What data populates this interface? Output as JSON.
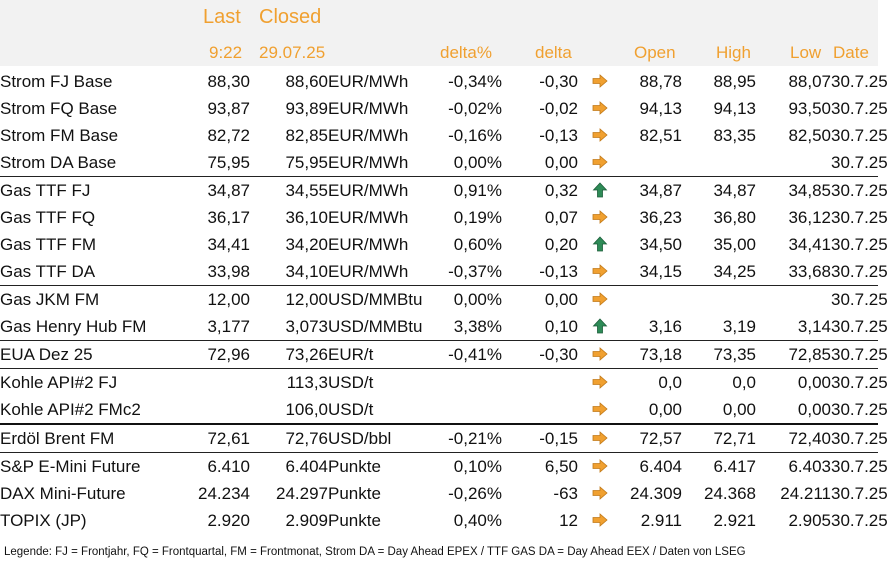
{
  "header": {
    "last_label": "Last",
    "closed_label": "Closed",
    "last_time": "9:22",
    "closed_date": "29.07.25",
    "delta_pct_label": "delta%",
    "delta_label": "delta",
    "open_label": "Open",
    "high_label": "High",
    "low_label": "Low",
    "date_label": "Date"
  },
  "colors": {
    "header_text": "#f0a030",
    "arrow_flat": "#f0a030",
    "arrow_up": "#2e8b57",
    "header_bg": "#f2f2f2"
  },
  "rows": [
    {
      "name": "Strom FJ Base",
      "last": "88,30",
      "closed": "88,60",
      "unit": "EUR/MWh",
      "delta_pct": "-0,34%",
      "delta": "-0,30",
      "trend": "flat",
      "open": "88,78",
      "high": "88,95",
      "low": "88,07",
      "date": "30.7.25"
    },
    {
      "name": "Strom FQ Base",
      "last": "93,87",
      "closed": "93,89",
      "unit": "EUR/MWh",
      "delta_pct": "-0,02%",
      "delta": "-0,02",
      "trend": "flat",
      "open": "94,13",
      "high": "94,13",
      "low": "93,50",
      "date": "30.7.25"
    },
    {
      "name": "Strom FM Base",
      "last": "82,72",
      "closed": "82,85",
      "unit": "EUR/MWh",
      "delta_pct": "-0,16%",
      "delta": "-0,13",
      "trend": "flat",
      "open": "82,51",
      "high": "83,35",
      "low": "82,50",
      "date": "30.7.25"
    },
    {
      "name": "Strom DA Base",
      "last": "75,95",
      "closed": "75,95",
      "unit": "EUR/MWh",
      "delta_pct": "0,00%",
      "delta": "0,00",
      "trend": "flat",
      "open": "",
      "high": "",
      "low": "",
      "date": "30.7.25"
    },
    {
      "name": "Gas TTF FJ",
      "last": "34,87",
      "closed": "34,55",
      "unit": "EUR/MWh",
      "delta_pct": "0,91%",
      "delta": "0,32",
      "trend": "up",
      "open": "34,87",
      "high": "34,87",
      "low": "34,85",
      "date": "30.7.25",
      "group_start": true
    },
    {
      "name": "Gas TTF FQ",
      "last": "36,17",
      "closed": "36,10",
      "unit": "EUR/MWh",
      "delta_pct": "0,19%",
      "delta": "0,07",
      "trend": "flat",
      "open": "36,23",
      "high": "36,80",
      "low": "36,12",
      "date": "30.7.25"
    },
    {
      "name": "Gas TTF FM",
      "last": "34,41",
      "closed": "34,20",
      "unit": "EUR/MWh",
      "delta_pct": "0,60%",
      "delta": "0,20",
      "trend": "up",
      "open": "34,50",
      "high": "35,00",
      "low": "34,41",
      "date": "30.7.25"
    },
    {
      "name": "Gas TTF DA",
      "last": "33,98",
      "closed": "34,10",
      "unit": "EUR/MWh",
      "delta_pct": "-0,37%",
      "delta": "-0,13",
      "trend": "flat",
      "open": "34,15",
      "high": "34,25",
      "low": "33,68",
      "date": "30.7.25"
    },
    {
      "name": "Gas JKM FM",
      "last": "12,00",
      "closed": "12,00",
      "unit": "USD/MMBtu",
      "delta_pct": "0,00%",
      "delta": "0,00",
      "trend": "flat",
      "open": "",
      "high": "",
      "low": "",
      "date": "30.7.25",
      "group_start": true
    },
    {
      "name": "Gas Henry Hub FM",
      "last": "3,177",
      "closed": "3,073",
      "unit": "USD/MMBtu",
      "delta_pct": "3,38%",
      "delta": "0,10",
      "trend": "up",
      "open": "3,16",
      "high": "3,19",
      "low": "3,14",
      "date": "30.7.25"
    },
    {
      "name": "EUA Dez 25",
      "last": "72,96",
      "closed": "73,26",
      "unit": "EUR/t",
      "delta_pct": "-0,41%",
      "delta": "-0,30",
      "trend": "flat",
      "open": "73,18",
      "high": "73,35",
      "low": "72,85",
      "date": "30.7.25",
      "group_start": true
    },
    {
      "name": "Kohle API#2 FJ",
      "last": "",
      "closed": "113,3",
      "unit": "USD/t",
      "delta_pct": "",
      "delta": "",
      "trend": "flat",
      "open": "0,0",
      "high": "0,0",
      "low": "0,00",
      "date": "30.7.25",
      "group_start": true
    },
    {
      "name": "Kohle API#2 FMc2",
      "last": "",
      "closed": "106,0",
      "unit": "USD/t",
      "delta_pct": "",
      "delta": "",
      "trend": "flat",
      "open": "0,00",
      "high": "0,00",
      "low": "0,00",
      "date": "30.7.25"
    },
    {
      "name": "Erdöl Brent FM",
      "last": "72,61",
      "closed": "72,76",
      "unit": "USD/bbl",
      "delta_pct": "-0,21%",
      "delta": "-0,15",
      "trend": "flat",
      "open": "72,57",
      "high": "72,71",
      "low": "72,40",
      "date": "30.7.25",
      "group_start": true,
      "bold_border": true
    },
    {
      "name": "S&P E-Mini Future",
      "last": "6.410",
      "closed": "6.404",
      "unit": "Punkte",
      "delta_pct": "0,10%",
      "delta": "6,50",
      "trend": "flat",
      "open": "6.404",
      "high": "6.417",
      "low": "6.403",
      "date": "30.7.25",
      "group_start": true
    },
    {
      "name": "DAX Mini-Future",
      "last": "24.234",
      "closed": "24.297",
      "unit": "Punkte",
      "delta_pct": "-0,26%",
      "delta": "-63",
      "trend": "flat",
      "open": "24.309",
      "high": "24.368",
      "low": "24.211",
      "date": "30.7.25"
    },
    {
      "name": "TOPIX (JP)",
      "last": "2.920",
      "closed": "2.909",
      "unit": "Punkte",
      "delta_pct": "0,40%",
      "delta": "12",
      "trend": "flat",
      "open": "2.911",
      "high": "2.921",
      "low": "2.905",
      "date": "30.7.25"
    }
  ],
  "legend": "Legende: FJ = Frontjahr, FQ = Frontquartal, FM = Frontmonat, Strom DA = Day Ahead EPEX / TTF GAS DA = Day Ahead EEX / Daten von LSEG"
}
